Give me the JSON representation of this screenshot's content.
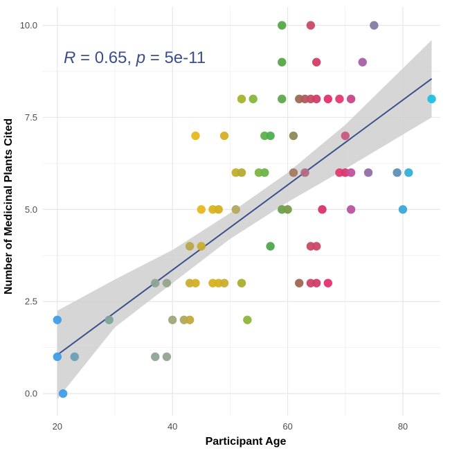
{
  "chart_data": {
    "type": "scatter",
    "title": "",
    "xlabel": "Participant Age",
    "ylabel": "Number of Medicinal Plants Cited",
    "xlim": [
      17.5,
      86.5
    ],
    "ylim": [
      -0.6,
      10.5
    ],
    "xticks": [
      "20",
      "40",
      "60",
      "80"
    ],
    "xtick_values": [
      20,
      40,
      60,
      80
    ],
    "yticks": [
      "0.0",
      "2.5",
      "5.0",
      "7.5",
      "10.0"
    ],
    "ytick_values": [
      0,
      2.5,
      5,
      7.5,
      10
    ],
    "grid": true,
    "annotation": {
      "r_label": "R",
      "r_text": " = 0.65, ",
      "p_label": "p",
      "p_text": " = 5e-11"
    },
    "regression": {
      "x_start": 20,
      "x_end": 85,
      "y_start": 1.05,
      "y_end": 8.55,
      "band": [
        {
          "x": 20,
          "lo": -0.15,
          "hi": 2.25
        },
        {
          "x": 30,
          "lo": 1.8,
          "hi": 3.1
        },
        {
          "x": 40,
          "lo": 3.0,
          "hi": 3.9
        },
        {
          "x": 50,
          "lo": 4.2,
          "hi": 4.9
        },
        {
          "x": 60,
          "lo": 5.2,
          "hi": 6.0
        },
        {
          "x": 70,
          "lo": 6.1,
          "hi": 7.3
        },
        {
          "x": 85,
          "lo": 7.5,
          "hi": 9.6
        }
      ]
    },
    "points": [
      {
        "x": 20,
        "y": 2,
        "color": "#3f9fe6"
      },
      {
        "x": 20,
        "y": 1,
        "color": "#3f9fe6"
      },
      {
        "x": 21,
        "y": 0,
        "color": "#3f9fe6"
      },
      {
        "x": 23,
        "y": 1,
        "color": "#6b9fb4"
      },
      {
        "x": 29,
        "y": 2,
        "color": "#7ea39a"
      },
      {
        "x": 37,
        "y": 3,
        "color": "#8ea396"
      },
      {
        "x": 39,
        "y": 3,
        "color": "#94a58e"
      },
      {
        "x": 37,
        "y": 1,
        "color": "#8ea396"
      },
      {
        "x": 39,
        "y": 1,
        "color": "#94a58e"
      },
      {
        "x": 40,
        "y": 2,
        "color": "#a1a57a"
      },
      {
        "x": 42,
        "y": 2,
        "color": "#b0a65e"
      },
      {
        "x": 43,
        "y": 2,
        "color": "#c2aa3a"
      },
      {
        "x": 43,
        "y": 3,
        "color": "#c9ad30"
      },
      {
        "x": 44,
        "y": 3,
        "color": "#d4b025"
      },
      {
        "x": 43,
        "y": 4,
        "color": "#bba64a"
      },
      {
        "x": 45,
        "y": 4,
        "color": "#c9ad30"
      },
      {
        "x": 44,
        "y": 7,
        "color": "#e6b81c"
      },
      {
        "x": 45,
        "y": 5,
        "color": "#e6b81c"
      },
      {
        "x": 47,
        "y": 5,
        "color": "#dcb31e"
      },
      {
        "x": 48,
        "y": 5,
        "color": "#d2b020"
      },
      {
        "x": 47,
        "y": 3,
        "color": "#d8b020"
      },
      {
        "x": 48,
        "y": 3,
        "color": "#d8b020"
      },
      {
        "x": 49,
        "y": 3,
        "color": "#c9ad30"
      },
      {
        "x": 49,
        "y": 7,
        "color": "#d4b025"
      },
      {
        "x": 51,
        "y": 6,
        "color": "#c3af2a"
      },
      {
        "x": 52,
        "y": 6,
        "color": "#b3ac33"
      },
      {
        "x": 51,
        "y": 5,
        "color": "#b3a85e"
      },
      {
        "x": 52,
        "y": 3,
        "color": "#aaae2e"
      },
      {
        "x": 52,
        "y": 8,
        "color": "#a2b52a"
      },
      {
        "x": 54,
        "y": 8,
        "color": "#86b63a"
      },
      {
        "x": 53,
        "y": 2,
        "color": "#8fb53a"
      },
      {
        "x": 55,
        "y": 6,
        "color": "#7db542"
      },
      {
        "x": 56,
        "y": 6,
        "color": "#6cb34a"
      },
      {
        "x": 56,
        "y": 7,
        "color": "#5fb24c"
      },
      {
        "x": 57,
        "y": 7,
        "color": "#4fae4f"
      },
      {
        "x": 57,
        "y": 4,
        "color": "#4ea84b"
      },
      {
        "x": 59,
        "y": 10,
        "color": "#53a84b"
      },
      {
        "x": 59,
        "y": 9,
        "color": "#57a84a"
      },
      {
        "x": 59,
        "y": 8,
        "color": "#5fa84a"
      },
      {
        "x": 59,
        "y": 5,
        "color": "#6aa04a"
      },
      {
        "x": 60,
        "y": 5,
        "color": "#7a9a4a"
      },
      {
        "x": 61,
        "y": 7,
        "color": "#8d8a56"
      },
      {
        "x": 61,
        "y": 6,
        "color": "#a27a62"
      },
      {
        "x": 62,
        "y": 8,
        "color": "#9a6a55"
      },
      {
        "x": 62,
        "y": 3,
        "color": "#a06652"
      },
      {
        "x": 63,
        "y": 8,
        "color": "#b05a5a"
      },
      {
        "x": 63,
        "y": 6,
        "color": "#b26a80"
      },
      {
        "x": 64,
        "y": 8,
        "color": "#c44c64"
      },
      {
        "x": 64,
        "y": 10,
        "color": "#c84a68"
      },
      {
        "x": 64,
        "y": 4,
        "color": "#c44c64"
      },
      {
        "x": 65,
        "y": 4,
        "color": "#c84a68"
      },
      {
        "x": 64,
        "y": 3,
        "color": "#cc4468"
      },
      {
        "x": 65,
        "y": 3,
        "color": "#d03e6a"
      },
      {
        "x": 65,
        "y": 8,
        "color": "#d03e6a"
      },
      {
        "x": 65,
        "y": 9,
        "color": "#d03e6a"
      },
      {
        "x": 66,
        "y": 5,
        "color": "#d8336e"
      },
      {
        "x": 67,
        "y": 3,
        "color": "#e0306e"
      },
      {
        "x": 67,
        "y": 8,
        "color": "#e0306e"
      },
      {
        "x": 69,
        "y": 8,
        "color": "#e03a6e"
      },
      {
        "x": 69,
        "y": 6,
        "color": "#e03a6e"
      },
      {
        "x": 70,
        "y": 6,
        "color": "#d8386e"
      },
      {
        "x": 70,
        "y": 7,
        "color": "#c85880"
      },
      {
        "x": 71,
        "y": 8,
        "color": "#c8468a"
      },
      {
        "x": 71,
        "y": 6,
        "color": "#c0529a"
      },
      {
        "x": 71,
        "y": 5,
        "color": "#b8559f"
      },
      {
        "x": 73,
        "y": 9,
        "color": "#a860a8"
      },
      {
        "x": 74,
        "y": 6,
        "color": "#8f70a8"
      },
      {
        "x": 75,
        "y": 10,
        "color": "#7f7ea4"
      },
      {
        "x": 79,
        "y": 6,
        "color": "#5e8fb8"
      },
      {
        "x": 81,
        "y": 6,
        "color": "#33b0d8"
      },
      {
        "x": 80,
        "y": 5,
        "color": "#3aa8d8"
      },
      {
        "x": 85,
        "y": 8,
        "color": "#1fc0e0"
      }
    ]
  }
}
